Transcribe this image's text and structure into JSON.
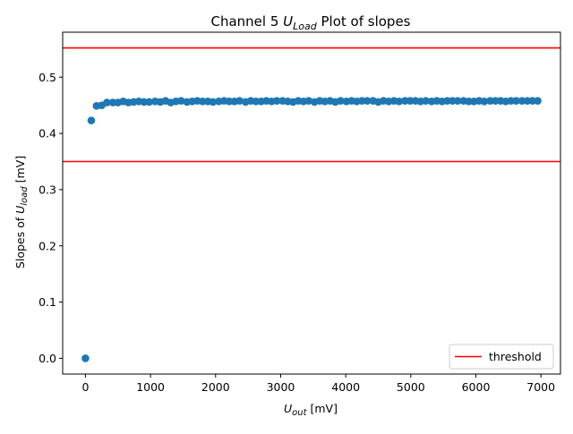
{
  "chart_data": {
    "type": "scatter",
    "title_prefix": "Channel 5 ",
    "title_symbol": "U",
    "title_subscript": "Load",
    "title_suffix": " Plot of slopes",
    "xlabel_symbol": "U",
    "xlabel_subscript": "out",
    "xlabel_suffix": " [mV]",
    "ylabel_prefix": "Slopes of ",
    "ylabel_symbol": "U",
    "ylabel_subscript": "load",
    "ylabel_suffix": " [mV]",
    "xlim": [
      -350,
      7300
    ],
    "ylim": [
      -0.028,
      0.58
    ],
    "xticks": [
      0,
      1000,
      2000,
      3000,
      4000,
      5000,
      6000,
      7000
    ],
    "yticks": [
      0.0,
      0.1,
      0.2,
      0.3,
      0.4,
      0.5
    ],
    "xtick_labels": [
      "0",
      "1000",
      "2000",
      "3000",
      "4000",
      "5000",
      "6000",
      "7000"
    ],
    "ytick_labels": [
      "0.0",
      "0.1",
      "0.2",
      "0.3",
      "0.4",
      "0.5"
    ],
    "grid": false,
    "point_color": "#1f77b4",
    "points": [
      [
        0,
        0.0
      ],
      [
        90,
        0.423
      ],
      [
        170,
        0.449
      ],
      [
        250,
        0.45
      ],
      [
        330,
        0.455
      ],
      [
        420,
        0.455
      ],
      [
        500,
        0.455
      ],
      [
        580,
        0.457
      ],
      [
        660,
        0.455
      ],
      [
        740,
        0.456
      ],
      [
        820,
        0.457
      ],
      [
        900,
        0.456
      ],
      [
        980,
        0.456
      ],
      [
        1070,
        0.457
      ],
      [
        1150,
        0.456
      ],
      [
        1230,
        0.458
      ],
      [
        1310,
        0.455
      ],
      [
        1390,
        0.457
      ],
      [
        1470,
        0.458
      ],
      [
        1560,
        0.456
      ],
      [
        1640,
        0.457
      ],
      [
        1720,
        0.458
      ],
      [
        1800,
        0.457
      ],
      [
        1880,
        0.457
      ],
      [
        1960,
        0.456
      ],
      [
        2050,
        0.457
      ],
      [
        2130,
        0.458
      ],
      [
        2210,
        0.457
      ],
      [
        2290,
        0.457
      ],
      [
        2370,
        0.458
      ],
      [
        2460,
        0.456
      ],
      [
        2540,
        0.458
      ],
      [
        2620,
        0.457
      ],
      [
        2700,
        0.457
      ],
      [
        2780,
        0.458
      ],
      [
        2860,
        0.457
      ],
      [
        2940,
        0.458
      ],
      [
        3030,
        0.458
      ],
      [
        3110,
        0.457
      ],
      [
        3190,
        0.456
      ],
      [
        3270,
        0.458
      ],
      [
        3350,
        0.457
      ],
      [
        3430,
        0.458
      ],
      [
        3520,
        0.456
      ],
      [
        3600,
        0.458
      ],
      [
        3680,
        0.457
      ],
      [
        3760,
        0.458
      ],
      [
        3840,
        0.456
      ],
      [
        3920,
        0.458
      ],
      [
        4010,
        0.457
      ],
      [
        4090,
        0.458
      ],
      [
        4170,
        0.457
      ],
      [
        4250,
        0.458
      ],
      [
        4330,
        0.458
      ],
      [
        4420,
        0.458
      ],
      [
        4500,
        0.456
      ],
      [
        4580,
        0.458
      ],
      [
        4660,
        0.457
      ],
      [
        4740,
        0.458
      ],
      [
        4820,
        0.457
      ],
      [
        4910,
        0.458
      ],
      [
        4990,
        0.458
      ],
      [
        5070,
        0.458
      ],
      [
        5150,
        0.457
      ],
      [
        5230,
        0.458
      ],
      [
        5320,
        0.457
      ],
      [
        5400,
        0.458
      ],
      [
        5480,
        0.457
      ],
      [
        5560,
        0.458
      ],
      [
        5640,
        0.458
      ],
      [
        5720,
        0.458
      ],
      [
        5810,
        0.458
      ],
      [
        5890,
        0.457
      ],
      [
        5970,
        0.457
      ],
      [
        6050,
        0.458
      ],
      [
        6130,
        0.457
      ],
      [
        6220,
        0.458
      ],
      [
        6300,
        0.458
      ],
      [
        6380,
        0.458
      ],
      [
        6460,
        0.457
      ],
      [
        6540,
        0.458
      ],
      [
        6620,
        0.458
      ],
      [
        6710,
        0.458
      ],
      [
        6790,
        0.458
      ],
      [
        6870,
        0.458
      ],
      [
        6950,
        0.458
      ]
    ],
    "thresholds": [
      0.35,
      0.552
    ],
    "threshold_color": "#ff0000",
    "legend": {
      "label": "threshold",
      "position": "lower-right"
    }
  }
}
